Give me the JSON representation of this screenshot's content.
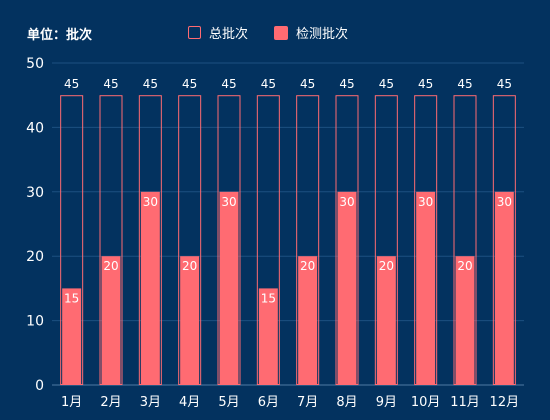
{
  "unit_label": "单位：批次",
  "legend": {
    "total_label": "总批次",
    "tested_label": "检测批次"
  },
  "colors": {
    "background": "#03325f",
    "tested_fill": "#ff6b72",
    "total_outline": "#ff6b72",
    "grid": "#1d5080",
    "axis_text": "#ffffff"
  },
  "chart_data": {
    "type": "bar",
    "categories": [
      "1月",
      "2月",
      "3月",
      "4月",
      "5月",
      "6月",
      "7月",
      "8月",
      "9月",
      "10月",
      "11月",
      "12月"
    ],
    "series": [
      {
        "name": "总批次",
        "style": "outline",
        "values": [
          45,
          45,
          45,
          45,
          45,
          45,
          45,
          45,
          45,
          45,
          45,
          45
        ]
      },
      {
        "name": "检测批次",
        "style": "filled",
        "values": [
          15,
          20,
          30,
          20,
          30,
          15,
          20,
          30,
          20,
          30,
          20,
          30
        ]
      }
    ],
    "ylim": [
      0,
      50
    ],
    "yticks": [
      0,
      10,
      20,
      30,
      40,
      50
    ],
    "grid": true,
    "legend_position": "top-center",
    "data_labels": true
  }
}
